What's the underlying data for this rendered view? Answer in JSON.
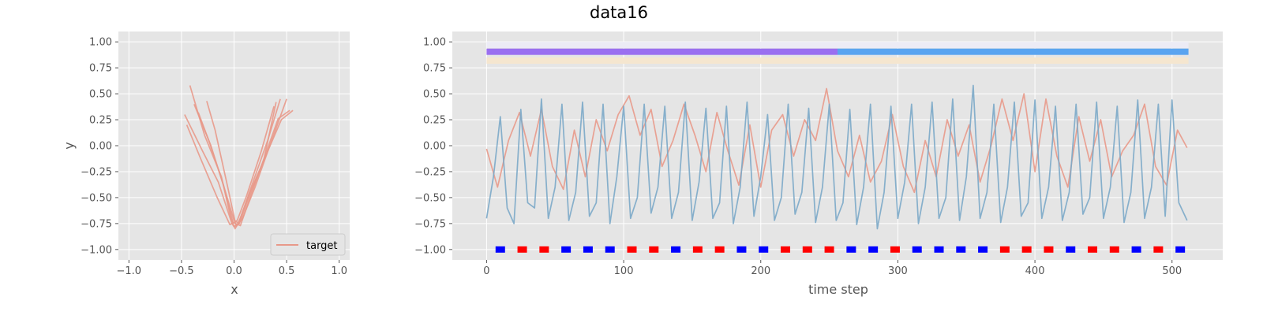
{
  "figure": {
    "suptitle": "data16"
  },
  "chart_data": [
    {
      "type": "line",
      "xlabel": "x",
      "ylabel": "y",
      "xlim": [
        -1.1,
        1.1
      ],
      "ylim": [
        -1.1,
        1.1
      ],
      "xticks": [
        -1.0,
        -0.5,
        0.0,
        0.5,
        1.0
      ],
      "xtick_labels": [
        "−1.0",
        "−0.5",
        "0.0",
        "0.5",
        "1.0"
      ],
      "yticks": [
        -1.0,
        -0.75,
        -0.5,
        -0.25,
        0.0,
        0.25,
        0.5,
        0.75,
        1.0
      ],
      "ytick_labels": [
        "−1.00",
        "−0.75",
        "−0.50",
        "−0.25",
        "0.00",
        "0.25",
        "0.50",
        "0.75",
        "1.00"
      ],
      "grid": true,
      "legend": {
        "location": "lower right",
        "entries": [
          {
            "label": "target",
            "color": "#e8998a"
          }
        ]
      },
      "series": [
        {
          "name": "target",
          "color": "#e8998a",
          "x": [
            -0.47,
            -0.3,
            -0.15,
            -0.02,
            0.0,
            0.04,
            0.15,
            0.3,
            0.45,
            0.56
          ],
          "y": [
            0.3,
            -0.05,
            -0.35,
            -0.75,
            -0.78,
            -0.75,
            -0.45,
            -0.1,
            0.25,
            0.34
          ]
        },
        {
          "color": "#e8998a",
          "x": [
            -0.42,
            -0.28,
            -0.12,
            -0.03,
            0.01,
            0.06,
            0.18,
            0.32,
            0.44
          ],
          "y": [
            0.58,
            0.1,
            -0.3,
            -0.7,
            -0.8,
            -0.7,
            -0.35,
            0.05,
            0.45
          ]
        },
        {
          "color": "#e8998a",
          "x": [
            -0.38,
            -0.22,
            -0.08,
            0.0,
            0.05,
            0.14,
            0.28,
            0.4
          ],
          "y": [
            0.4,
            0.0,
            -0.45,
            -0.72,
            -0.75,
            -0.5,
            -0.15,
            0.42
          ]
        },
        {
          "color": "#e8998a",
          "x": [
            -0.26,
            -0.18,
            -0.06,
            0.02,
            0.08,
            0.2,
            0.34,
            0.5
          ],
          "y": [
            0.43,
            0.15,
            -0.4,
            -0.78,
            -0.7,
            -0.4,
            0.0,
            0.45
          ]
        },
        {
          "color": "#e8998a",
          "x": [
            -0.45,
            -0.32,
            -0.16,
            -0.04,
            0.03,
            0.12,
            0.26,
            0.38
          ],
          "y": [
            0.2,
            -0.12,
            -0.5,
            -0.76,
            -0.72,
            -0.48,
            -0.05,
            0.38
          ]
        },
        {
          "color": "#e8998a",
          "x": [
            -0.34,
            -0.24,
            -0.1,
            -0.01,
            0.06,
            0.18,
            0.3,
            0.42,
            0.53
          ],
          "y": [
            0.32,
            0.05,
            -0.38,
            -0.74,
            -0.77,
            -0.42,
            -0.08,
            0.26,
            0.34
          ]
        }
      ]
    },
    {
      "type": "line",
      "xlabel": "time step",
      "ylabel": "",
      "xlim": [
        -25,
        537
      ],
      "ylim": [
        -1.1,
        1.1
      ],
      "xticks": [
        0,
        100,
        200,
        300,
        400,
        500
      ],
      "xtick_labels": [
        "0",
        "100",
        "200",
        "300",
        "400",
        "500"
      ],
      "yticks": [
        -1.0,
        -0.75,
        -0.5,
        -0.25,
        0.0,
        0.25,
        0.5,
        0.75,
        1.0
      ],
      "ytick_labels": [
        "−1.00",
        "−0.75",
        "−0.50",
        "−0.25",
        "0.00",
        "0.25",
        "0.50",
        "0.75",
        "1.00"
      ],
      "grid": true,
      "series": [
        {
          "color": "#e8998a",
          "x": [
            0,
            8,
            16,
            24,
            32,
            40,
            48,
            56,
            64,
            72,
            80,
            88,
            96,
            104,
            112,
            120,
            128,
            136,
            144,
            152,
            160,
            168,
            176,
            184,
            192,
            200,
            208,
            216,
            224,
            232,
            240,
            248,
            256,
            264,
            272,
            280,
            288,
            296,
            304,
            312,
            320,
            328,
            336,
            344,
            352,
            360,
            368,
            376,
            384,
            392,
            400,
            408,
            416,
            424,
            432,
            440,
            448,
            456,
            464,
            472,
            480,
            488,
            496,
            504,
            511
          ],
          "y": [
            -0.03,
            -0.4,
            0.05,
            0.32,
            -0.1,
            0.35,
            -0.2,
            -0.42,
            0.15,
            -0.3,
            0.25,
            -0.05,
            0.3,
            0.48,
            0.1,
            0.35,
            -0.2,
            0.05,
            0.4,
            0.1,
            -0.25,
            0.32,
            -0.05,
            -0.38,
            0.2,
            -0.4,
            0.15,
            0.3,
            -0.1,
            0.25,
            0.05,
            0.55,
            -0.05,
            -0.3,
            0.1,
            -0.35,
            -0.15,
            0.3,
            -0.2,
            -0.45,
            0.05,
            -0.3,
            0.25,
            -0.1,
            0.2,
            -0.35,
            0.0,
            0.45,
            0.05,
            0.5,
            -0.25,
            0.45,
            -0.1,
            -0.4,
            0.28,
            -0.15,
            0.25,
            -0.3,
            -0.05,
            0.1,
            0.4,
            -0.2,
            -0.38,
            0.15,
            -0.02
          ]
        },
        {
          "color": "#7ba9c8",
          "x": [
            0,
            5,
            10,
            15,
            20,
            25,
            30,
            35,
            40,
            45,
            50,
            55,
            60,
            65,
            70,
            75,
            80,
            85,
            90,
            95,
            100,
            105,
            110,
            115,
            120,
            125,
            130,
            135,
            140,
            145,
            150,
            155,
            160,
            165,
            170,
            175,
            180,
            185,
            190,
            195,
            200,
            205,
            210,
            215,
            220,
            225,
            230,
            235,
            240,
            245,
            250,
            255,
            260,
            265,
            270,
            275,
            280,
            285,
            290,
            295,
            300,
            305,
            310,
            315,
            320,
            325,
            330,
            335,
            340,
            345,
            350,
            355,
            360,
            365,
            370,
            375,
            380,
            385,
            390,
            395,
            400,
            405,
            410,
            415,
            420,
            425,
            430,
            435,
            440,
            445,
            450,
            455,
            460,
            465,
            470,
            475,
            480,
            485,
            490,
            495,
            500,
            505,
            511
          ],
          "y": [
            -0.7,
            -0.3,
            0.28,
            -0.6,
            -0.75,
            0.35,
            -0.55,
            -0.6,
            0.45,
            -0.7,
            -0.4,
            0.4,
            -0.72,
            -0.45,
            0.42,
            -0.68,
            -0.55,
            0.4,
            -0.75,
            -0.3,
            0.38,
            -0.7,
            -0.5,
            0.4,
            -0.65,
            -0.4,
            0.38,
            -0.7,
            -0.45,
            0.42,
            -0.72,
            -0.35,
            0.36,
            -0.7,
            -0.55,
            0.38,
            -0.75,
            -0.4,
            0.42,
            -0.68,
            -0.3,
            0.3,
            -0.72,
            -0.5,
            0.4,
            -0.66,
            -0.45,
            0.36,
            -0.74,
            -0.4,
            0.4,
            -0.72,
            -0.55,
            0.35,
            -0.76,
            -0.4,
            0.4,
            -0.8,
            -0.45,
            0.38,
            -0.7,
            -0.35,
            0.4,
            -0.75,
            -0.4,
            0.42,
            -0.7,
            -0.5,
            0.45,
            -0.72,
            -0.3,
            0.58,
            -0.7,
            -0.45,
            0.4,
            -0.74,
            -0.4,
            0.42,
            -0.68,
            -0.55,
            0.44,
            -0.7,
            -0.4,
            0.38,
            -0.72,
            -0.45,
            0.4,
            -0.66,
            -0.5,
            0.42,
            -0.7,
            -0.4,
            0.38,
            -0.74,
            -0.45,
            0.44,
            -0.7,
            -0.4,
            0.4,
            -0.68,
            0.44,
            -0.55,
            -0.72
          ]
        }
      ],
      "state_bars": [
        {
          "color": "#ecebf5",
          "y": 0.97,
          "x0": 0,
          "x1": 512
        },
        {
          "color": "#f5e6cf",
          "y": 0.82,
          "x0": 0,
          "x1": 512
        },
        {
          "color": "#9a6ff0",
          "y": 0.905,
          "x0": 0,
          "x1": 256
        },
        {
          "color": "#5aa4f0",
          "y": 0.905,
          "x0": 256,
          "x1": 512
        }
      ],
      "event_markers": {
        "y": -1.0,
        "x": [
          10,
          26,
          42,
          58,
          74,
          90,
          106,
          122,
          138,
          154,
          170,
          186,
          202,
          218,
          234,
          250,
          266,
          282,
          298,
          314,
          330,
          346,
          362,
          378,
          394,
          410,
          426,
          442,
          458,
          474,
          490,
          506
        ],
        "colors": [
          "#0000ff",
          "#ff0000",
          "#ff0000",
          "#0000ff",
          "#0000ff",
          "#0000ff",
          "#ff0000",
          "#ff0000",
          "#0000ff",
          "#ff0000",
          "#ff0000",
          "#0000ff",
          "#0000ff",
          "#ff0000",
          "#ff0000",
          "#ff0000",
          "#0000ff",
          "#0000ff",
          "#ff0000",
          "#0000ff",
          "#0000ff",
          "#0000ff",
          "#0000ff",
          "#ff0000",
          "#ff0000",
          "#ff0000",
          "#0000ff",
          "#ff0000",
          "#ff0000",
          "#0000ff",
          "#ff0000",
          "#0000ff"
        ]
      }
    }
  ]
}
